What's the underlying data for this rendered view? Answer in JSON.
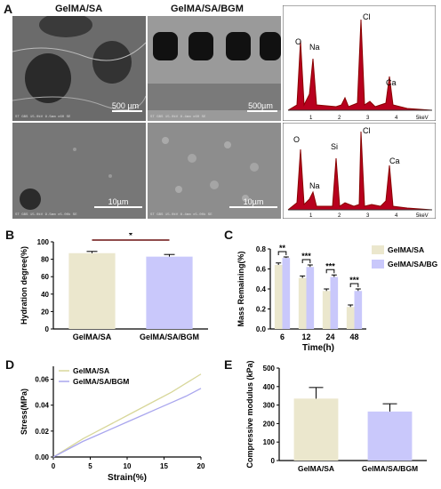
{
  "panel_letters": [
    "A",
    "B",
    "C",
    "D",
    "E"
  ],
  "panelA": {
    "col1_label": "GelMA/SA",
    "col2_label": "GelMA/SA/BGM",
    "sem_images": [
      {
        "scale": "500 µm",
        "info": "ST GBS 15.0kV 9.5mm x60 SE"
      },
      {
        "scale": "500µm",
        "info": "ST GBS 15.0kV 8.4mm x60 SE"
      },
      {
        "scale": "10µm",
        "info": "ST GBS 15.0kV 9.5mm x5.00k SE"
      },
      {
        "scale": "10µm",
        "info": "ST GBS 15.0kV 8.4mm x5.00k SE"
      }
    ],
    "eds_top": {
      "peaks": [
        "O",
        "Na",
        "Cl",
        "Ca"
      ],
      "ticks": [
        "1",
        "2",
        "3",
        "4",
        "5keV"
      ]
    },
    "eds_bottom": {
      "peaks": [
        "O",
        "Si",
        "Cl",
        "Na",
        "Ca"
      ],
      "ticks": [
        "1",
        "2",
        "3",
        "4",
        "5keV"
      ]
    }
  },
  "chart_data": [
    {
      "panel": "B",
      "type": "bar",
      "categories": [
        "GelMA/SA",
        "GelMA/SA/BGM"
      ],
      "values": [
        87,
        83
      ],
      "errors": [
        2,
        2.5
      ],
      "ylabel": "Hydration degree(%)",
      "ylim": [
        0,
        100
      ],
      "yticks": [
        "0",
        "20",
        "40",
        "60",
        "80",
        "100"
      ],
      "significance": "*",
      "colors": [
        "#ebe7cd",
        "#c9c8fb"
      ]
    },
    {
      "panel": "C",
      "type": "bar",
      "categories": [
        "6",
        "12",
        "24",
        "48"
      ],
      "series": [
        {
          "name": "GelMA/SA",
          "values": [
            0.64,
            0.51,
            0.38,
            0.22
          ],
          "errors": [
            0.02,
            0.02,
            0.02,
            0.02
          ]
        },
        {
          "name": "GelMA/SA/BGM",
          "values": [
            0.71,
            0.62,
            0.52,
            0.38
          ],
          "errors": [
            0.01,
            0.02,
            0.02,
            0.02
          ]
        }
      ],
      "significance": [
        "**",
        "***",
        "***",
        "***"
      ],
      "xlabel": "Time(h)",
      "ylabel": "Mass Remaining(%)",
      "ylim": [
        0,
        0.8
      ],
      "yticks": [
        "0.0",
        "0.2",
        "0.4",
        "0.6",
        "0.8"
      ],
      "colors": [
        "#ebe7cd",
        "#c9c8fb"
      ]
    },
    {
      "panel": "D",
      "type": "line",
      "series": [
        {
          "name": "GelMA/SA",
          "x": [
            0,
            2,
            4,
            6,
            8,
            10,
            12,
            14,
            16,
            18,
            20
          ],
          "y": [
            0,
            0.007,
            0.014,
            0.02,
            0.026,
            0.032,
            0.038,
            0.044,
            0.05,
            0.057,
            0.064
          ]
        },
        {
          "name": "GelMA/SA/BGM",
          "x": [
            0,
            2,
            4,
            6,
            8,
            10,
            12,
            14,
            16,
            18,
            20
          ],
          "y": [
            0,
            0.006,
            0.012,
            0.017,
            0.022,
            0.027,
            0.032,
            0.037,
            0.042,
            0.047,
            0.053
          ]
        }
      ],
      "xlabel": "Strain(%)",
      "ylabel": "Stress(MPa)",
      "xlim": [
        0,
        20
      ],
      "ylim": [
        0,
        0.07
      ],
      "xticks": [
        "0",
        "5",
        "10",
        "15",
        "20"
      ],
      "yticks": [
        "0.00",
        "0.02",
        "0.04",
        "0.06"
      ],
      "colors": [
        "#d8d79a",
        "#a9a6ee"
      ]
    },
    {
      "panel": "E",
      "type": "bar",
      "categories": [
        "GelMA/SA",
        "GelMA/SA/BGM"
      ],
      "values": [
        335,
        265
      ],
      "errors": [
        60,
        42
      ],
      "ylabel": "Compressive modulus (kPa)",
      "ylim": [
        0,
        500
      ],
      "yticks": [
        "0",
        "100",
        "200",
        "300",
        "400",
        "500"
      ],
      "colors": [
        "#ebe7cd",
        "#c9c8fb"
      ]
    }
  ]
}
